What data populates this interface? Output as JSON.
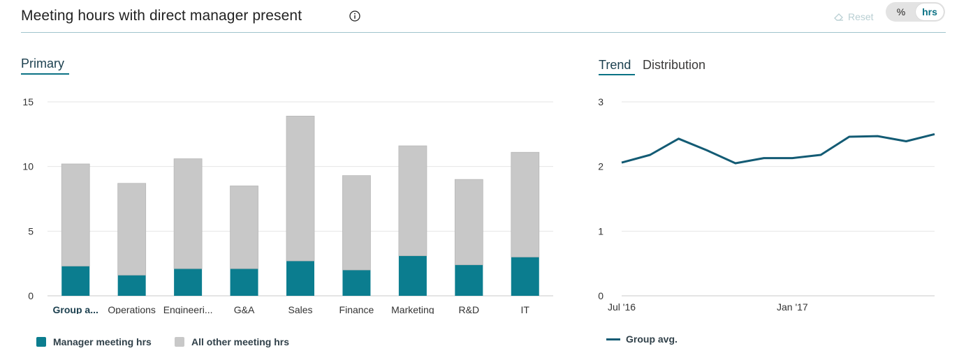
{
  "header": {
    "title": "Meeting hours with direct manager present",
    "info_icon": "info-icon",
    "reset_label": "Reset",
    "reset_icon": "eraser-icon",
    "toggle": {
      "options": [
        "%",
        "hrs"
      ],
      "selected": "hrs"
    }
  },
  "left_panel": {
    "tab_label": "Primary"
  },
  "right_panel": {
    "tabs": [
      {
        "label": "Trend",
        "active": true
      },
      {
        "label": "Distribution",
        "active": false
      }
    ]
  },
  "colors": {
    "manager": "#0b7d8f",
    "other": "#c8c8c8",
    "trend": "#135b74",
    "accent": "#0b7285"
  },
  "chart_data": [
    {
      "type": "bar",
      "stacked": true,
      "categories": [
        "Group a...",
        "Operations",
        "Engineeri...",
        "G&A",
        "Sales",
        "Finance",
        "Marketing",
        "R&D",
        "IT"
      ],
      "highlight_category": "Group a...",
      "series": [
        {
          "name": "Manager meeting hrs",
          "values": [
            2.3,
            1.6,
            2.1,
            2.1,
            2.7,
            2.0,
            3.1,
            2.4,
            3.0
          ]
        },
        {
          "name": "All other meeting hrs",
          "values": [
            7.9,
            7.1,
            8.5,
            6.4,
            11.2,
            7.3,
            8.5,
            6.6,
            8.1
          ]
        }
      ],
      "ylim": [
        0,
        15
      ],
      "yticks": [
        0,
        5,
        10,
        15
      ],
      "grid": true,
      "legend": "bottom-left"
    },
    {
      "type": "line",
      "x": [
        "Jul '16",
        "Aug '16",
        "Sep '16",
        "Oct '16",
        "Nov '16",
        "Dec '16",
        "Jan '17",
        "Feb '17",
        "Mar '17",
        "Apr '17",
        "May '17",
        "Jun '17"
      ],
      "xtick_labels": [
        "Jul '16",
        "Jan '17"
      ],
      "series": [
        {
          "name": "Group avg.",
          "values": [
            2.06,
            2.18,
            2.43,
            2.25,
            2.05,
            2.13,
            2.13,
            2.18,
            2.46,
            2.47,
            2.39,
            2.5
          ]
        }
      ],
      "ylim": [
        0,
        3
      ],
      "yticks": [
        0,
        1,
        2,
        3
      ],
      "grid": true,
      "legend": "bottom-left"
    }
  ]
}
